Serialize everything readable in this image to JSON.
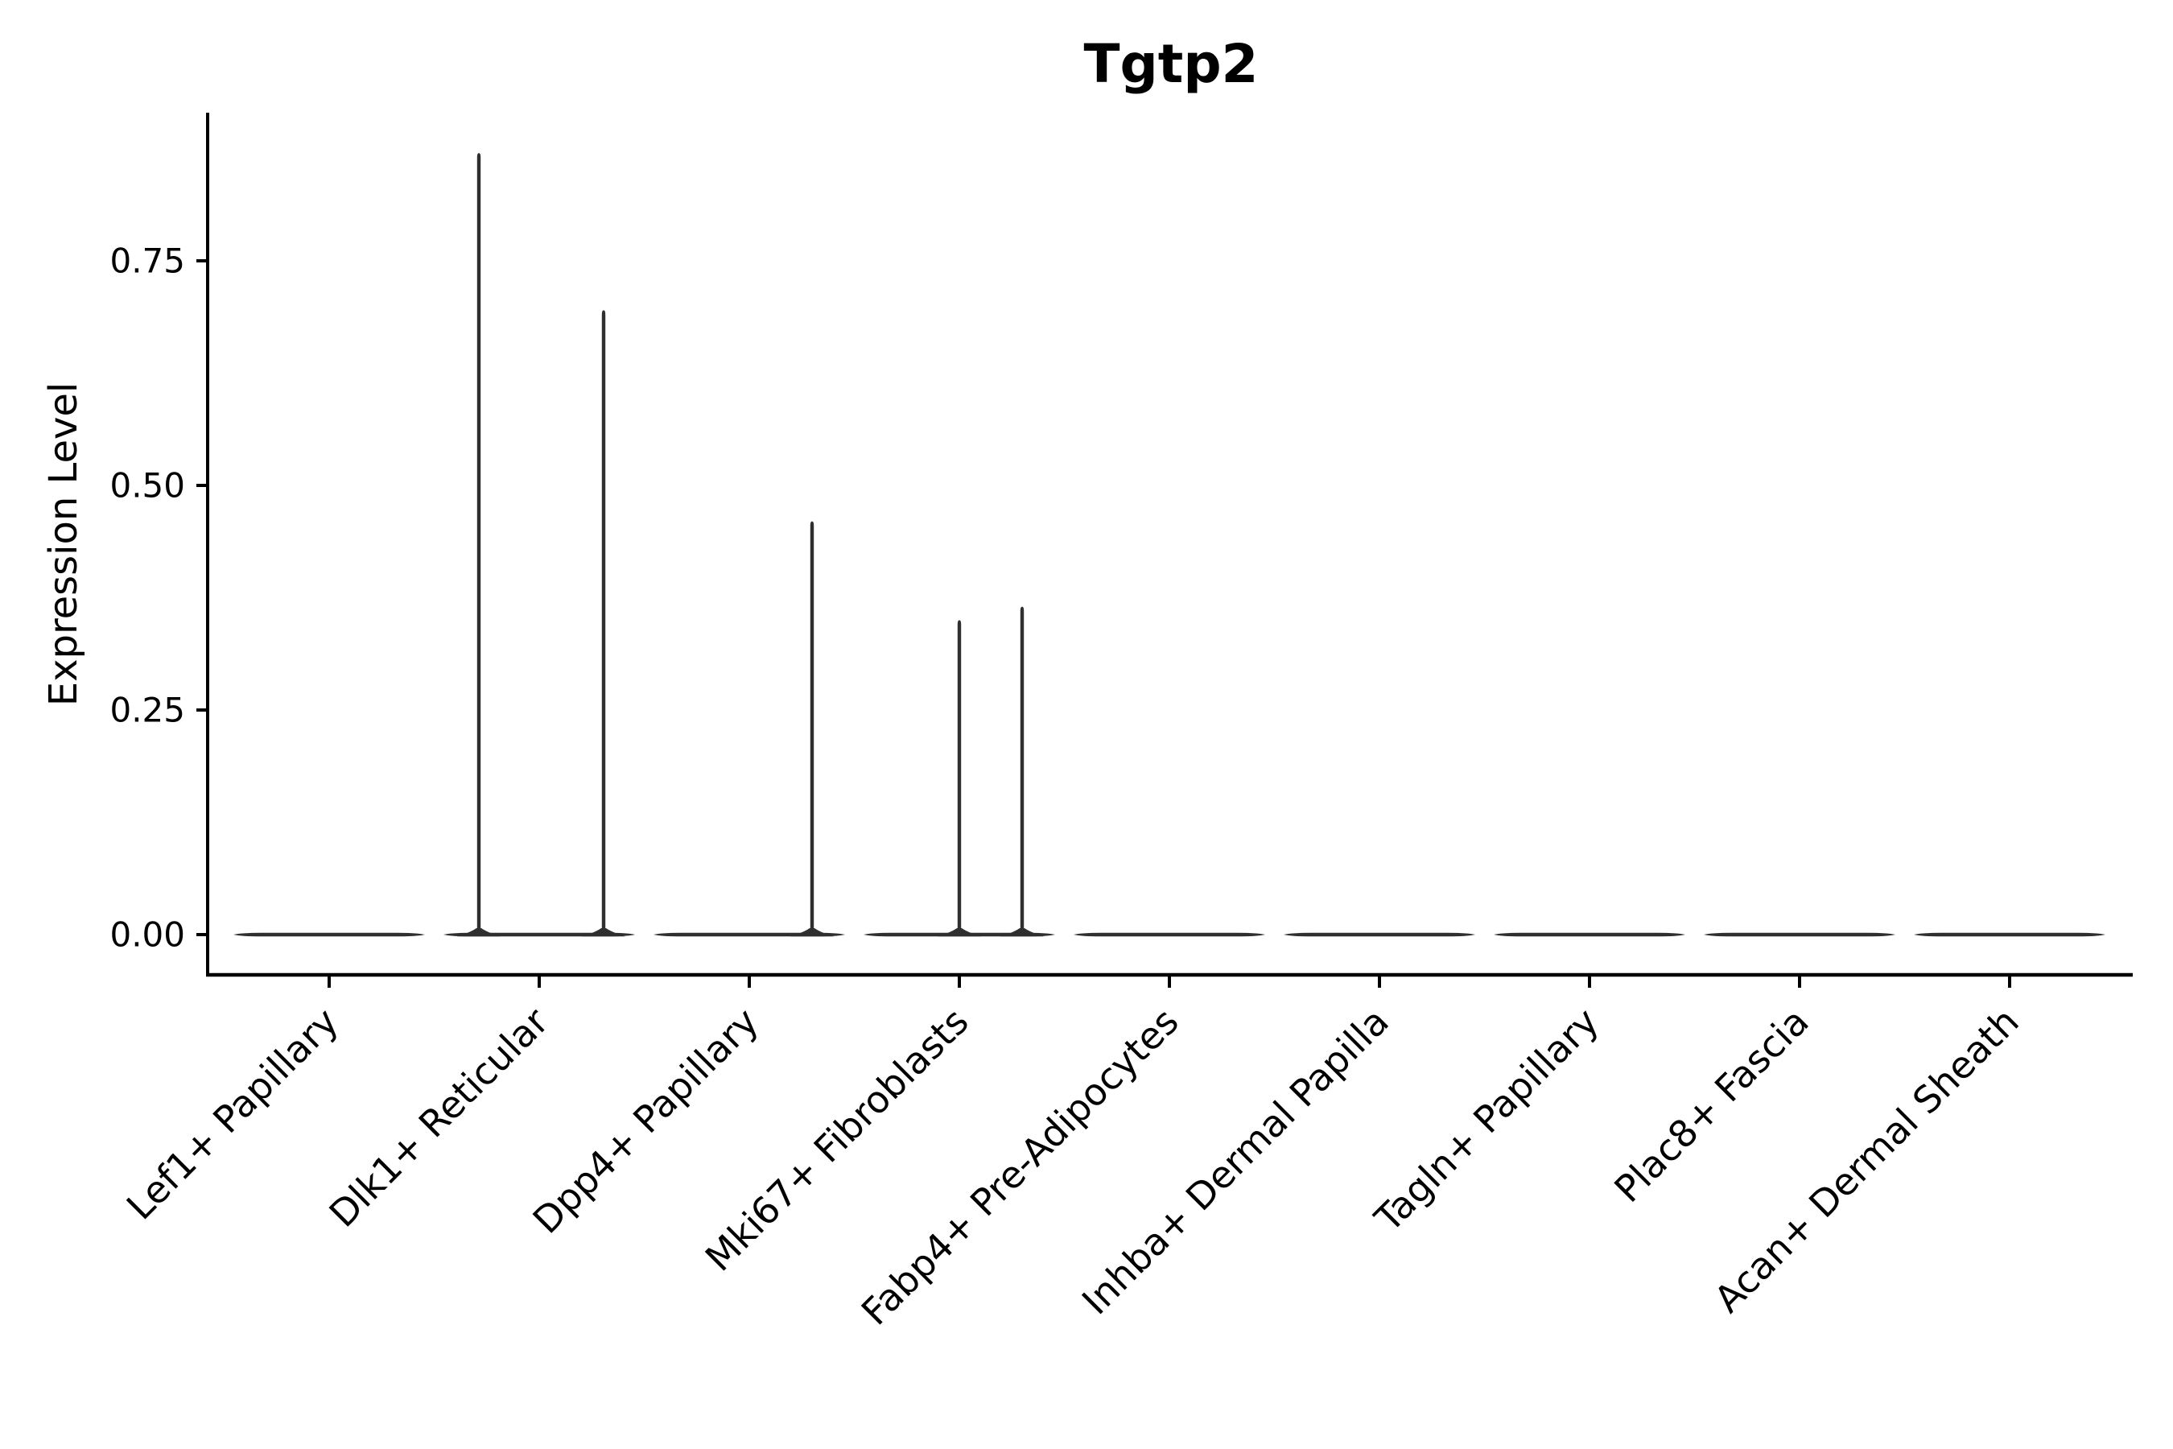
{
  "chart_data": {
    "type": "violin",
    "title": "Tgtp2",
    "xlabel": "",
    "ylabel": "Expression Level",
    "ylim": [
      0,
      0.915
    ],
    "grid": false,
    "legend": "none",
    "ytick_values": [
      0,
      0.25,
      0.5,
      0.75
    ],
    "ytick_labels": [
      "0.00",
      "0.25",
      "0.50",
      "0.75"
    ],
    "categories": [
      "Lef1+ Papillary",
      "Dlk1+ Reticular",
      "Dpp4+ Papillary",
      "Mki67+ Fibroblasts",
      "Fabp4+ Pre-Adipocytes",
      "Inhba+ Dermal Papilla",
      "Tagln+ Papillary",
      "Plac8+ Fascia",
      "Acan+ Dermal Sheath"
    ],
    "violins": [
      {
        "category": "Lef1+ Papillary",
        "base_value": 0,
        "spikes": []
      },
      {
        "category": "Dlk1+ Reticular",
        "base_value": 0,
        "spikes": [
          {
            "offset": -75,
            "value": 0.87
          },
          {
            "offset": 80,
            "value": 0.695
          }
        ]
      },
      {
        "category": "Dpp4+ Papillary",
        "base_value": 0,
        "spikes": [
          {
            "offset": 78,
            "value": 0.46
          }
        ]
      },
      {
        "category": "Mki67+ Fibroblasts",
        "base_value": 0,
        "spikes": [
          {
            "offset": 0,
            "value": 0.35
          },
          {
            "offset": 78,
            "value": 0.365
          }
        ]
      },
      {
        "category": "Fabp4+ Pre-Adipocytes",
        "base_value": 0,
        "spikes": []
      },
      {
        "category": "Inhba+ Dermal Papilla",
        "base_value": 0,
        "spikes": []
      },
      {
        "category": "Tagln+ Papillary",
        "base_value": 0,
        "spikes": []
      },
      {
        "category": "Plac8+ Fascia",
        "base_value": 0,
        "spikes": []
      },
      {
        "category": "Acan+ Dermal Sheath",
        "base_value": 0,
        "spikes": []
      }
    ],
    "colors": {
      "violin": "#2f2f2f",
      "axis": "#000000",
      "text": "#000000",
      "background": "#ffffff"
    }
  }
}
